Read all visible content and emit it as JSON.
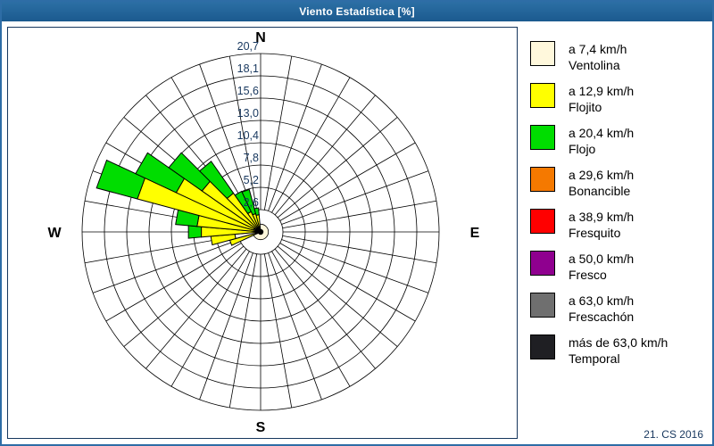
{
  "window": {
    "title": "Viento Estadística [%]",
    "footer": "21. CS 2016",
    "titlebar_color": "#1B5A8F",
    "border_color": "#2E6DA6"
  },
  "compass": {
    "n": "N",
    "e": "E",
    "s": "S",
    "w": "W"
  },
  "chart_data": {
    "type": "wind_rose_polar_stacked_bar",
    "units": "%",
    "sector_width_deg": 10,
    "grid": "on",
    "rings": 8,
    "ring_labels": [
      "2,6",
      "5,2",
      "7,8",
      "10,4",
      "13,0",
      "15,6",
      "18,1",
      "20,7"
    ],
    "ring_values": [
      2.6,
      5.2,
      7.8,
      10.4,
      13.0,
      15.6,
      18.1,
      20.7
    ],
    "rmax_value": 20.7,
    "ring_label_color": "#17375E",
    "categories": [
      {
        "name": "Ventolina",
        "speed": "a 7,4 km/h",
        "color": "#FFF8DC"
      },
      {
        "name": "Flojito",
        "speed": "a 12,9 km/h",
        "color": "#FFFF00"
      },
      {
        "name": "Flojo",
        "speed": "a 20,4 km/h",
        "color": "#00DD00"
      },
      {
        "name": "Bonancible",
        "speed": "a 29,6 km/h",
        "color": "#F57900"
      },
      {
        "name": "Fresquito",
        "speed": "a 38,9 km/h",
        "color": "#FF0000"
      },
      {
        "name": "Fresco",
        "speed": "a 50,0 km/h",
        "color": "#8F008F"
      },
      {
        "name": "Frescachón",
        "speed": "a 63,0 km/h",
        "color": "#6F6F6F"
      },
      {
        "name": "Temporal",
        "speed": "más de 63,0 km/h",
        "color": "#1F1F23"
      }
    ],
    "petals": [
      {
        "dir_deg": 250,
        "cum": [
          0.4,
          3.7
        ]
      },
      {
        "dir_deg": 260,
        "cum": [
          3.0,
          5.8
        ]
      },
      {
        "dir_deg": 270,
        "cum": [
          0.6,
          6.9,
          8.4
        ]
      },
      {
        "dir_deg": 280,
        "cum": [
          0.6,
          7.4,
          9.9
        ]
      },
      {
        "dir_deg": 290,
        "cum": [
          0.8,
          14.8,
          19.7
        ]
      },
      {
        "dir_deg": 300,
        "cum": [
          0.8,
          10.8,
          16.0
        ]
      },
      {
        "dir_deg": 310,
        "cum": [
          0.6,
          8.3,
          13.0
        ]
      },
      {
        "dir_deg": 320,
        "cum": [
          0.5,
          5.5,
          10.0
        ]
      },
      {
        "dir_deg": 330,
        "cum": [
          0.4,
          2.6,
          5.2
        ]
      },
      {
        "dir_deg": 340,
        "cum": [
          0.3,
          2.2,
          5.1
        ]
      },
      {
        "dir_deg": 350,
        "cum": [
          0.3,
          2.0,
          2.8
        ]
      }
    ],
    "calm_value": 0.9
  },
  "legend": {
    "note": "items rendered from chart_data.categories"
  }
}
